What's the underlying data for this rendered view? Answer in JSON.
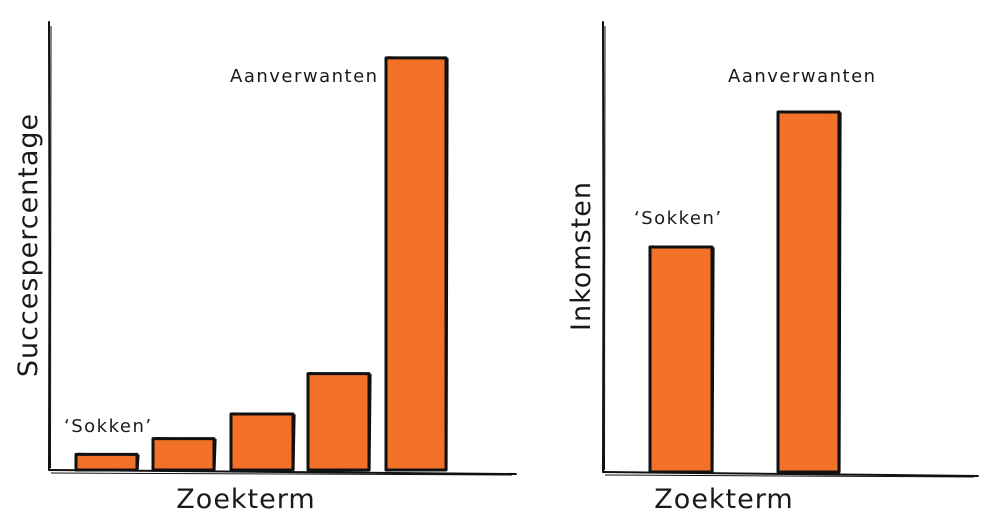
{
  "chart_data": [
    {
      "type": "bar",
      "categories": [
        "",
        "",
        "",
        "",
        ""
      ],
      "values": [
        3.5,
        7,
        12.5,
        21.5,
        92
      ],
      "ylim": [
        0,
        100
      ],
      "xlabel": "Zoekterm",
      "ylabel": "Succespercentage",
      "annotations": [
        {
          "text": "‘Sokken’",
          "target": 0
        },
        {
          "text": "Aanverwanten",
          "target": 4
        }
      ],
      "colors": {
        "bar": "#f07127",
        "outline": "#111111"
      },
      "grid": false
    },
    {
      "type": "bar",
      "categories": [
        "",
        ""
      ],
      "values": [
        50,
        80
      ],
      "ylim": [
        0,
        100
      ],
      "xlabel": "Zoekterm",
      "ylabel": "Inkomsten",
      "annotations": [
        {
          "text": "‘Sokken’",
          "target": 0
        },
        {
          "text": "Aanverwanten",
          "target": 1
        }
      ],
      "colors": {
        "bar": "#f07127",
        "outline": "#111111"
      },
      "grid": false
    }
  ]
}
